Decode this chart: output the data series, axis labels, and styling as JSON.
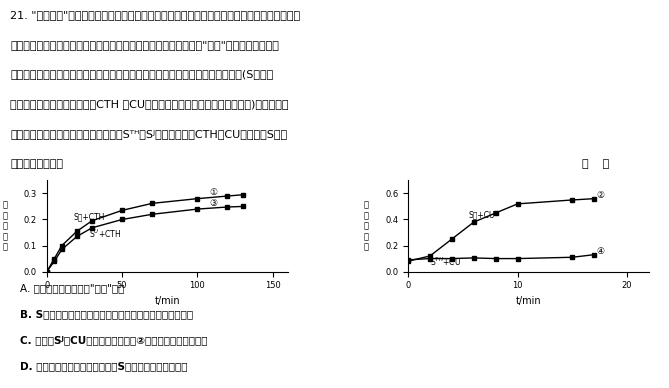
{
  "left_chart": {
    "xlabel": "t/min",
    "ylim": [
      0,
      0.35
    ],
    "xlim": [
      0,
      160
    ],
    "xticks": [
      0,
      50,
      100,
      150
    ],
    "yticks": [
      0,
      0.1,
      0.2,
      0.3
    ],
    "curve1_x": [
      0,
      5,
      10,
      20,
      30,
      50,
      70,
      100,
      120,
      130
    ],
    "curve1_y": [
      0,
      0.05,
      0.1,
      0.155,
      0.195,
      0.235,
      0.262,
      0.28,
      0.29,
      0.295
    ],
    "curve3_x": [
      0,
      5,
      10,
      20,
      30,
      50,
      70,
      100,
      120,
      130
    ],
    "curve3_y": [
      0,
      0.04,
      0.085,
      0.135,
      0.168,
      0.2,
      0.22,
      0.24,
      0.248,
      0.25
    ]
  },
  "right_chart": {
    "xlabel": "t/min",
    "ylim": [
      0,
      0.7
    ],
    "xlim": [
      0,
      22
    ],
    "xticks": [
      0,
      10,
      20
    ],
    "yticks": [
      0,
      0.2,
      0.4,
      0.6
    ],
    "curve2_x": [
      0,
      2,
      4,
      6,
      8,
      10,
      15,
      17
    ],
    "curve2_y": [
      0.08,
      0.12,
      0.25,
      0.38,
      0.45,
      0.52,
      0.55,
      0.56
    ],
    "curve4_x": [
      0,
      2,
      4,
      6,
      8,
      10,
      15,
      17
    ],
    "curve4_y": [
      0.09,
      0.1,
      0.1,
      0.105,
      0.1,
      0.1,
      0.11,
      0.13
    ]
  },
  "bg_color": "#ffffff"
}
